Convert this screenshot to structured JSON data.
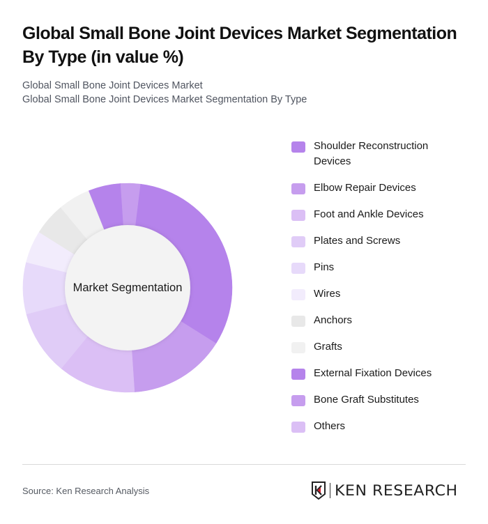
{
  "header": {
    "title": "Global Small Bone Joint Devices Market Segmentation By Type (in value %)",
    "subtitle_line1": "Global Small Bone Joint Devices Market",
    "subtitle_line2": "Global Small Bone Joint Devices Market Segmentation By Type"
  },
  "chart": {
    "center_label": "Market Segmentation"
  },
  "chart_data": {
    "type": "pie",
    "variant": "donut",
    "title": "Global Small Bone Joint Devices Market Segmentation By Type (in value %)",
    "center_label": "Market Segmentation",
    "start_angle_deg": 7,
    "categories": [
      "Shoulder Reconstruction Devices",
      "Elbow Repair Devices",
      "Foot and Ankle Devices",
      "Plates and Screws",
      "Pins",
      "Wires",
      "Anchors",
      "Grafts",
      "External Fixation Devices",
      "Bone Graft Substitutes",
      "Others"
    ],
    "values": [
      32,
      15,
      12,
      10,
      8,
      5,
      5,
      5,
      5,
      3,
      0
    ],
    "colors": [
      "#B583EB",
      "#C69DEE",
      "#DBBFF5",
      "#E0CCF7",
      "#E7DAFA",
      "#F2ECFC",
      "#E8E8E8",
      "#F1F1F1",
      "#B583EB",
      "#C69DEE",
      "#DBBFF5"
    ],
    "legend_position": "right",
    "unit": "%"
  },
  "legend": {
    "items": [
      {
        "label": "Shoulder Reconstruction Devices",
        "color": "#B583EB"
      },
      {
        "label": "Elbow Repair Devices",
        "color": "#C69DEE"
      },
      {
        "label": "Foot and Ankle Devices",
        "color": "#DBBFF5"
      },
      {
        "label": "Plates and Screws",
        "color": "#E0CCF7"
      },
      {
        "label": "Pins",
        "color": "#E7DAFA"
      },
      {
        "label": "Wires",
        "color": "#F2ECFC"
      },
      {
        "label": "Anchors",
        "color": "#E8E8E8"
      },
      {
        "label": "Grafts",
        "color": "#F1F1F1"
      },
      {
        "label": "External Fixation Devices",
        "color": "#B583EB"
      },
      {
        "label": "Bone Graft Substitutes",
        "color": "#C69DEE"
      },
      {
        "label": "Others",
        "color": "#DBBFF5"
      }
    ]
  },
  "footer": {
    "source": "Source: Ken Research Analysis",
    "logo_text": "KEN RESEARCH"
  },
  "colors": {
    "accent": "#B583EB",
    "inner_circle": "#F3F3F3",
    "logo_red": "#D0202E"
  }
}
